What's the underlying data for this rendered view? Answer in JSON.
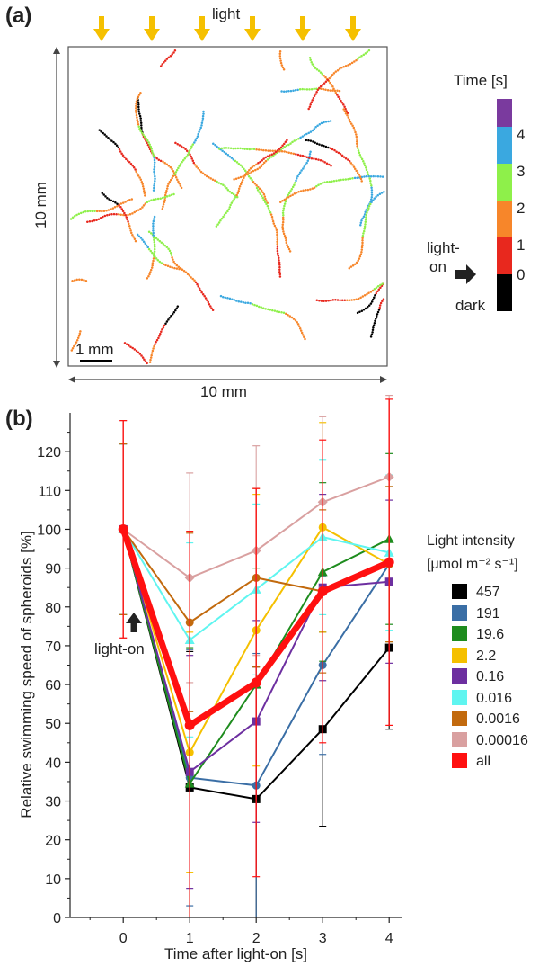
{
  "panel_a": {
    "label": "(a)",
    "light_label": "light",
    "scale_bar_label": "1 mm",
    "width_label": "10 mm",
    "height_label": "10 mm",
    "colorbar": {
      "title": "Time [s]",
      "ticks": [
        "4",
        "3",
        "2",
        "1",
        "0"
      ],
      "light_on_label_1": "light-",
      "light_on_label_2": "on",
      "dark_label": "dark",
      "colors": [
        "#000000",
        "#e8281e",
        "#f7862a",
        "#8ef04a",
        "#3aa8e0",
        "#7a3a9e"
      ]
    }
  },
  "panel_b": {
    "label": "(b)",
    "light_on_annotation": "light-on",
    "legend_title_line1": "Light intensity",
    "legend_title_line2": "[μmol m⁻² s⁻¹]"
  },
  "chart_data": {
    "type": "line",
    "title": "",
    "xlabel": "Time after light-on [s]",
    "ylabel": "Relative swimming speed of spheroids [%]",
    "x": [
      0,
      1,
      2,
      3,
      4
    ],
    "xlim": [
      -0.8,
      4.2
    ],
    "ylim": [
      0,
      130
    ],
    "xticks": [
      "0",
      "1",
      "2",
      "3",
      "4"
    ],
    "yticks": [
      "0",
      "10",
      "20",
      "30",
      "40",
      "50",
      "60",
      "70",
      "80",
      "90",
      "100",
      "110",
      "120"
    ],
    "series": [
      {
        "name": "457",
        "color": "#000000",
        "marker": "square",
        "values": [
          100,
          33.5,
          30.5,
          48.5,
          69.5
        ],
        "err": [
          22,
          35,
          34,
          25,
          21
        ]
      },
      {
        "name": "191",
        "color": "#3a6ea5",
        "marker": "circle",
        "values": [
          100,
          36,
          34,
          65,
          91
        ],
        "err": [
          22,
          33,
          34,
          23,
          20
        ]
      },
      {
        "name": "19.6",
        "color": "#1e8c1e",
        "marker": "triangle",
        "values": [
          100,
          34.5,
          60,
          89,
          97.5
        ],
        "err": [
          22,
          35,
          30,
          23,
          22
        ]
      },
      {
        "name": "2.2",
        "color": "#f5c000",
        "marker": "circle",
        "values": [
          100,
          42.5,
          74,
          100.5,
          91
        ],
        "err": [
          22,
          31,
          35,
          27,
          20
        ]
      },
      {
        "name": "0.16",
        "color": "#6d2fa0",
        "marker": "square",
        "values": [
          100,
          37.5,
          50.5,
          85,
          86.5
        ],
        "err": [
          22,
          30,
          26,
          24,
          21
        ]
      },
      {
        "name": "0.016",
        "color": "#5ff5f0",
        "marker": "triangle",
        "values": [
          100,
          71.5,
          84.5,
          98,
          94
        ],
        "err": [
          22,
          25,
          22,
          20,
          20
        ]
      },
      {
        "name": "0.0016",
        "color": "#c26a0e",
        "marker": "circle",
        "values": [
          100,
          76,
          87.5,
          84,
          91
        ],
        "err": [
          22,
          23,
          23,
          21,
          20
        ]
      },
      {
        "name": "0.00016",
        "color": "#d9a0a0",
        "marker": "diamond",
        "values": [
          100,
          87.5,
          94.5,
          107,
          113.5
        ],
        "err": [
          28,
          27,
          27,
          22,
          21
        ]
      },
      {
        "name": "all",
        "color": "#ff1010",
        "marker": "circle",
        "values": [
          100,
          49.5,
          60.5,
          84,
          91.5
        ],
        "err": [
          28,
          50,
          50,
          39,
          42
        ]
      }
    ]
  }
}
